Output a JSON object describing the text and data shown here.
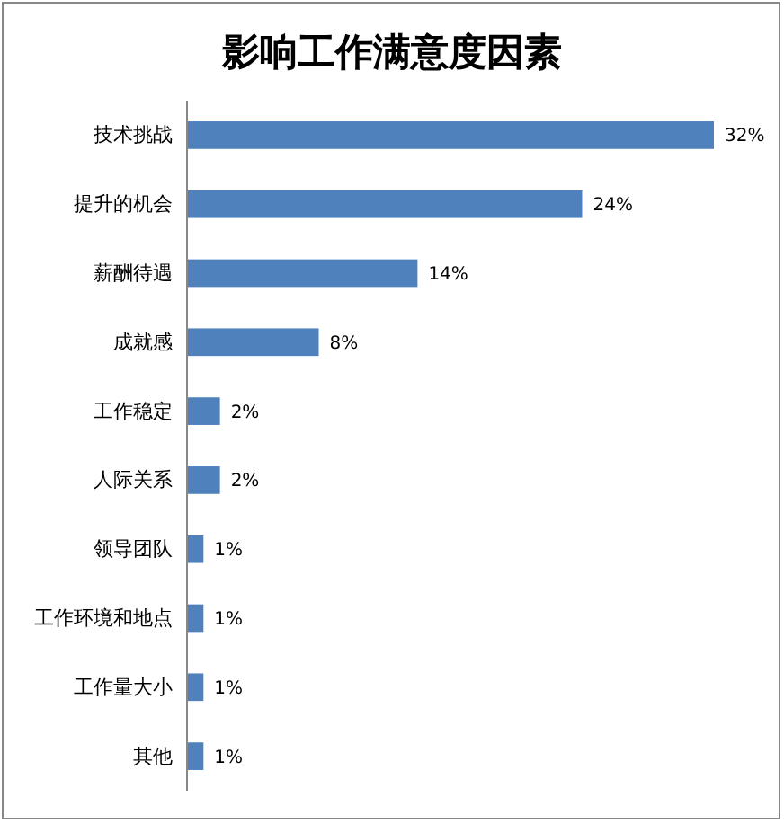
{
  "chart_data": {
    "type": "bar",
    "orientation": "horizontal",
    "title": "影响工作满意度因素",
    "categories": [
      "技术挑战",
      "提升的机会",
      "薪酬待遇",
      "成就感",
      "工作稳定",
      "人际关系",
      "领导团队",
      "工作环境和地点",
      "工作量大小",
      "其他"
    ],
    "values": [
      32,
      24,
      14,
      8,
      2,
      2,
      1,
      1,
      1,
      1
    ],
    "value_labels": [
      "32%",
      "24%",
      "14%",
      "8%",
      "2%",
      "2%",
      "1%",
      "1%",
      "1%",
      "1%"
    ],
    "color": "#4f81bd"
  }
}
